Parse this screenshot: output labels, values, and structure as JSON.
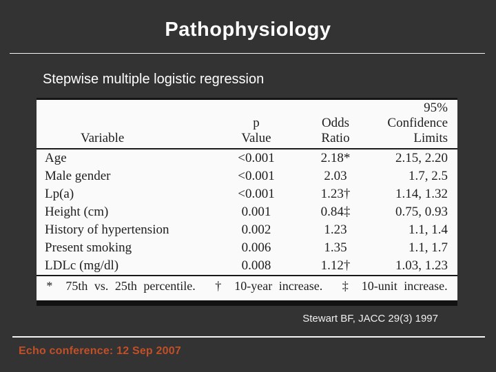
{
  "slide": {
    "title": "Pathophysiology",
    "subtitle": "Stepwise multiple logistic regression",
    "citation": "Stewart BF, JACC 29(3) 1997",
    "footer": "Echo conference: 12 Sep 2007"
  },
  "colors": {
    "background": "#333333",
    "title_text": "#ffffff",
    "divider": "#f5f5f5",
    "footer_accent": "#c14f28",
    "table_paper": "#fafafa",
    "table_ink": "#1e1e1e"
  },
  "table": {
    "headers": {
      "variable": [
        "Variable"
      ],
      "p_value": [
        "p",
        "Value"
      ],
      "odds_ratio": [
        "Odds",
        "Ratio"
      ],
      "confidence": [
        "95%",
        "Confidence",
        "Limits"
      ]
    },
    "rows": [
      [
        "Age",
        "<0.001",
        "2.18*",
        "2.15, 2.20"
      ],
      [
        "Male gender",
        "<0.001",
        "2.03",
        "1.7, 2.5"
      ],
      [
        "Lp(a)",
        "<0.001",
        "1.23†",
        "1.14, 1.32"
      ],
      [
        "Height (cm)",
        "0.001",
        "0.84‡",
        "0.75, 0.93"
      ],
      [
        "History of hypertension",
        "0.002",
        "1.23",
        "1.1, 1.4"
      ],
      [
        "Present smoking",
        "0.006",
        "1.35",
        "1.1, 1.7"
      ],
      [
        "LDLc (mg/dl)",
        "0.008",
        "1.12†",
        "1.03, 1.23"
      ]
    ],
    "footnote": "*  75th vs. 25th percentile.   †  10-year increase.   ‡  10-unit increase."
  }
}
